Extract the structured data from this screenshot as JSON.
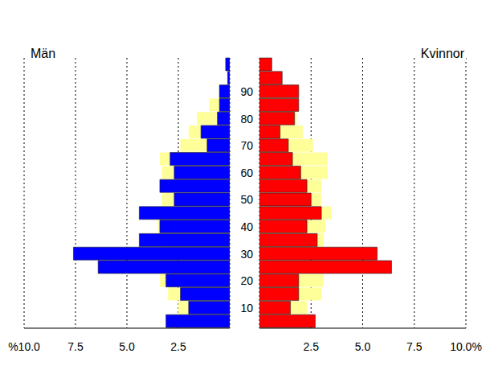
{
  "chart_data": [
    {
      "type": "bar",
      "title": "Män",
      "orientation": "horizontal",
      "grid": true,
      "categories": [
        null,
        null,
        null,
        null,
        null,
        null,
        null,
        null,
        null,
        null,
        null,
        null,
        null,
        null,
        null,
        null,
        null,
        null,
        null,
        null
      ],
      "series": [
        {
          "color": "#ffff99",
          "values": [
            2.7,
            2.5,
            3.0,
            3.4,
            3.2,
            3.3,
            3.4,
            3.5,
            3.6,
            3.3,
            3.3,
            3.3,
            3.4,
            2.4,
            2.0,
            1.6,
            1.0,
            0.5,
            0.1,
            0.0
          ]
        },
        {
          "color": "#0000ff",
          "values": [
            3.1,
            2.0,
            2.4,
            3.1,
            6.4,
            7.6,
            4.4,
            3.4,
            4.4,
            2.7,
            3.4,
            2.7,
            2.9,
            1.1,
            1.4,
            0.6,
            0.5,
            0.5,
            0.1,
            0.2
          ]
        }
      ],
      "xlim": [
        10,
        0
      ],
      "xticks": [
        {
          "value": 10,
          "label": "%10.0"
        },
        7.5,
        {
          "value": 5,
          "label": "5.0"
        },
        2.5
      ]
    },
    {
      "type": "bar",
      "title": "Kvinnor",
      "orientation": "horizontal",
      "grid": true,
      "categories": [
        null,
        "10",
        null,
        "20",
        null,
        "30",
        null,
        "40",
        null,
        "50",
        null,
        "60",
        null,
        "70",
        null,
        "80",
        null,
        "90",
        null,
        null
      ],
      "series": [
        {
          "color": "#ffff99",
          "values": [
            2.3,
            2.3,
            3.0,
            3.1,
            3.2,
            3.3,
            3.1,
            3.2,
            3.5,
            3.0,
            3.0,
            3.3,
            3.3,
            2.6,
            2.1,
            1.8,
            1.5,
            1.0,
            0.4,
            0.1
          ]
        },
        {
          "color": "#ff0000",
          "values": [
            2.7,
            1.5,
            1.9,
            1.9,
            6.4,
            5.7,
            2.8,
            2.3,
            3.0,
            2.5,
            2.3,
            2.0,
            1.6,
            1.4,
            1.0,
            1.7,
            1.9,
            1.9,
            1.1,
            0.6
          ]
        }
      ],
      "xlim": [
        0,
        10
      ],
      "xticks": [
        2.5,
        {
          "value": 5,
          "label": "5.0"
        },
        7.5,
        {
          "value": 10,
          "label": "10.0%"
        }
      ]
    }
  ]
}
